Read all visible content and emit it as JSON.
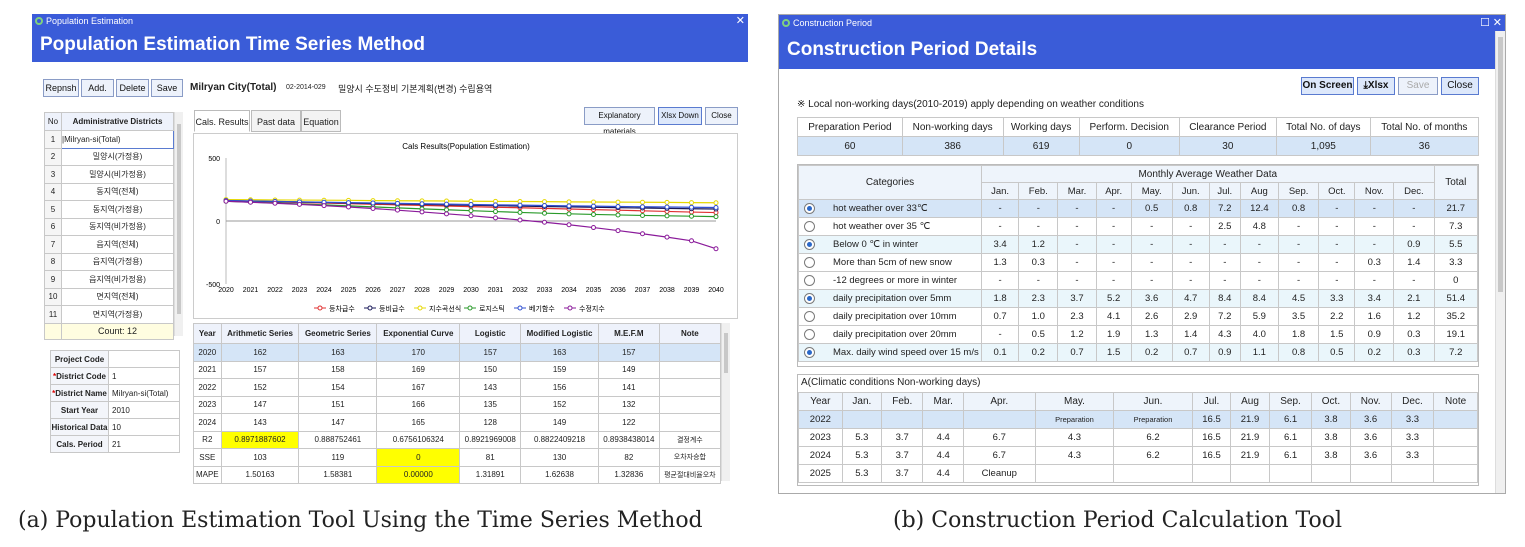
{
  "left": {
    "window_title": "Population Estimation",
    "banner_title": "Population Estimation Time Series Method",
    "toolbar": {
      "refresh": "Repnsh",
      "add": "Add.",
      "delete": "Delete",
      "save": "Save"
    },
    "city": "Milryan City(Total)",
    "code": "02-2014-029",
    "project_name": "밀양시 수도정비 기본계획(변경) 수립용역",
    "right_buttons": {
      "explain": "Explanatory materials",
      "xlsx": "Xlsx Down",
      "close": "Close"
    },
    "district_table": {
      "headers": [
        "No",
        "Administrative Districts"
      ],
      "rows": [
        [
          "1",
          "|Milryan-si(Total)"
        ],
        [
          "2",
          "밀양시(가정용)"
        ],
        [
          "3",
          "밀양시(비가정용)"
        ],
        [
          "4",
          "동지역(전체)"
        ],
        [
          "5",
          "동지역(가정용)"
        ],
        [
          "6",
          "동지역(비가정용)"
        ],
        [
          "7",
          "읍지역(전체)"
        ],
        [
          "8",
          "읍지역(가정용)"
        ],
        [
          "9",
          "읍지역(비가정용)"
        ],
        [
          "10",
          "면지역(전체)"
        ],
        [
          "11",
          "면지역(가정용)"
        ]
      ],
      "count": "Count: 12"
    },
    "info": [
      {
        "label": "Project Code",
        "value": "",
        "req": false
      },
      {
        "label": "District Code",
        "value": "1",
        "req": true
      },
      {
        "label": "District Name",
        "value": "Milryan-si(Total)",
        "req": true
      },
      {
        "label": "Start Year",
        "value": "2010",
        "req": false
      },
      {
        "label": "Historical Data",
        "value": "10",
        "req": false
      },
      {
        "label": "Cals. Period",
        "value": "21",
        "req": false
      }
    ],
    "tabs": [
      "Cals. Results",
      "Past data",
      "Equation"
    ],
    "result_table": {
      "headers": [
        "Year",
        "Arithmetic Series",
        "Geometric Series",
        "Exponential Curve",
        "Logistic",
        "Modified Logistic",
        "M.E.F.M",
        "Note"
      ],
      "rows": [
        [
          "2020",
          "162",
          "163",
          "170",
          "157",
          "163",
          "157",
          ""
        ],
        [
          "2021",
          "157",
          "158",
          "169",
          "150",
          "159",
          "149",
          ""
        ],
        [
          "2022",
          "152",
          "154",
          "167",
          "143",
          "156",
          "141",
          ""
        ],
        [
          "2023",
          "147",
          "151",
          "166",
          "135",
          "152",
          "132",
          ""
        ],
        [
          "2024",
          "143",
          "147",
          "165",
          "128",
          "149",
          "122",
          ""
        ]
      ],
      "stats": [
        [
          "R2",
          "0.8971887602",
          "0.888752461",
          "0.6756106324",
          "0.8921969008",
          "0.8822409218",
          "0.8938438014",
          "결정계수"
        ],
        [
          "SSE",
          "103",
          "119",
          "0",
          "81",
          "130",
          "82",
          "오차자승합"
        ],
        [
          "MAPE",
          "1.50163",
          "1.58381",
          "0.00000",
          "1.31891",
          "1.62638",
          "1.32836",
          "평균절대비율오차"
        ]
      ]
    }
  },
  "chart_data": {
    "type": "line",
    "title": "Cals Results(Population Estimation)",
    "x": [
      2020,
      2021,
      2022,
      2023,
      2024,
      2025,
      2026,
      2027,
      2028,
      2029,
      2030,
      2031,
      2032,
      2033,
      2034,
      2035,
      2036,
      2037,
      2038,
      2039,
      2040
    ],
    "ylim": [
      -500,
      500
    ],
    "yticks": [
      500,
      0,
      -500
    ],
    "series": [
      {
        "name": "등차급수",
        "color": "#e03030",
        "values": [
          162,
          157,
          152,
          147,
          143,
          138,
          133,
          128,
          124,
          119,
          114,
          109,
          105,
          100,
          95,
          90,
          86,
          81,
          76,
          71,
          67
        ]
      },
      {
        "name": "등비급수",
        "color": "#1a1a5a",
        "values": [
          163,
          158,
          154,
          151,
          147,
          143,
          139,
          136,
          132,
          128,
          125,
          122,
          118,
          115,
          112,
          109,
          106,
          103,
          100,
          97,
          95
        ]
      },
      {
        "name": "지수곡선식",
        "color": "#e6d800",
        "values": [
          170,
          169,
          167,
          166,
          165,
          164,
          162,
          161,
          160,
          159,
          157,
          156,
          155,
          154,
          152,
          151,
          150,
          149,
          148,
          146,
          145
        ]
      },
      {
        "name": "로지스틱",
        "color": "#2a9a2a",
        "values": [
          157,
          150,
          143,
          135,
          128,
          120,
          112,
          104,
          96,
          89,
          82,
          75,
          68,
          62,
          57,
          52,
          48,
          44,
          41,
          38,
          35
        ]
      },
      {
        "name": "베기함수",
        "color": "#3050d0",
        "values": [
          163,
          159,
          156,
          152,
          149,
          146,
          143,
          140,
          137,
          134,
          131,
          128,
          126,
          123,
          120,
          118,
          115,
          113,
          111,
          109,
          107
        ]
      },
      {
        "name": "수정지수",
        "color": "#8a1a9a",
        "values": [
          157,
          149,
          141,
          132,
          122,
          111,
          99,
          86,
          72,
          57,
          42,
          25,
          8,
          -10,
          -30,
          -52,
          -76,
          -101,
          -128,
          -157,
          -220
        ]
      }
    ]
  },
  "right": {
    "window_title": "Construction Period",
    "banner_title": "Construction Period Details",
    "buttons": {
      "onscreen": "On Screen",
      "xlsx": "⤓Xlsx",
      "save": "Save",
      "close": "Close"
    },
    "note": "※ Local non-working days(2010-2019) apply depending on weather conditions",
    "summary": {
      "headers": [
        "Preparation Period",
        "Non-working days",
        "Working days",
        "Perform. Decision",
        "Clearance Period",
        "Total No. of days",
        "Total No. of months"
      ],
      "values": [
        "60",
        "386",
        "619",
        "0",
        "30",
        "1,095",
        "36"
      ]
    },
    "weather": {
      "categories_header": "Categories",
      "monthly_header": "Monthly Average Weather Data",
      "total_header": "Total",
      "months": [
        "Jan.",
        "Feb.",
        "Mar.",
        "Apr.",
        "May.",
        "Jun.",
        "Jul.",
        "Aug",
        "Sep.",
        "Oct.",
        "Nov.",
        "Dec."
      ],
      "rows": [
        {
          "on": true,
          "label": "hot weather over 33℃",
          "vals": [
            "-",
            "-",
            "-",
            "-",
            "0.5",
            "0.8",
            "7.2",
            "12.4",
            "0.8",
            "-",
            "-",
            "-"
          ],
          "total": "21.7"
        },
        {
          "on": false,
          "label": "hot weather over 35 ℃",
          "vals": [
            "-",
            "-",
            "-",
            "-",
            "-",
            "-",
            "2.5",
            "4.8",
            "-",
            "-",
            "-",
            "-"
          ],
          "total": "7.3"
        },
        {
          "on": true,
          "label": "Below 0 ℃ in winter",
          "vals": [
            "3.4",
            "1.2",
            "-",
            "-",
            "-",
            "-",
            "-",
            "-",
            "-",
            "-",
            "-",
            "0.9"
          ],
          "total": "5.5"
        },
        {
          "on": false,
          "label": "More than 5cm of new snow",
          "vals": [
            "1.3",
            "0.3",
            "-",
            "-",
            "-",
            "-",
            "-",
            "-",
            "-",
            "-",
            "0.3",
            "1.4"
          ],
          "total": "3.3"
        },
        {
          "on": false,
          "label": "-12 degrees or more in winter",
          "vals": [
            "-",
            "-",
            "-",
            "-",
            "-",
            "-",
            "-",
            "-",
            "-",
            "-",
            "-",
            "-"
          ],
          "total": "0"
        },
        {
          "on": true,
          "label": "daily precipitation over 5mm",
          "vals": [
            "1.8",
            "2.3",
            "3.7",
            "5.2",
            "3.6",
            "4.7",
            "8.4",
            "8.4",
            "4.5",
            "3.3",
            "3.4",
            "2.1"
          ],
          "total": "51.4"
        },
        {
          "on": false,
          "label": "daily precipitation over 10mm",
          "vals": [
            "0.7",
            "1.0",
            "2.3",
            "4.1",
            "2.6",
            "2.9",
            "7.2",
            "5.9",
            "3.5",
            "2.2",
            "1.6",
            "1.2"
          ],
          "total": "35.2"
        },
        {
          "on": false,
          "label": "daily precipitation over 20mm",
          "vals": [
            "-",
            "0.5",
            "1.2",
            "1.9",
            "1.3",
            "1.4",
            "4.3",
            "4.0",
            "1.8",
            "1.5",
            "0.9",
            "0.3"
          ],
          "total": "19.1"
        },
        {
          "on": true,
          "label": "Max. daily wind speed over 15 m/s",
          "vals": [
            "0.1",
            "0.2",
            "0.7",
            "1.5",
            "0.2",
            "0.7",
            "0.9",
            "1.1",
            "0.8",
            "0.5",
            "0.2",
            "0.3"
          ],
          "total": "7.2"
        }
      ]
    },
    "nonwork": {
      "title": "A(Climatic conditions Non-working days)",
      "headers": [
        "Year",
        "Jan.",
        "Feb.",
        "Mar.",
        "Apr.",
        "May.",
        "Jun.",
        "Jul.",
        "Aug",
        "Sep.",
        "Oct.",
        "Nov.",
        "Dec.",
        "Note"
      ],
      "rows": [
        [
          "2022",
          "",
          "",
          "",
          "",
          "Preparation",
          "Preparation",
          "16.5",
          "21.9",
          "6.1",
          "3.8",
          "3.6",
          "3.3",
          ""
        ],
        [
          "2023",
          "5.3",
          "3.7",
          "4.4",
          "6.7",
          "4.3",
          "6.2",
          "16.5",
          "21.9",
          "6.1",
          "3.8",
          "3.6",
          "3.3",
          ""
        ],
        [
          "2024",
          "5.3",
          "3.7",
          "4.4",
          "6.7",
          "4.3",
          "6.2",
          "16.5",
          "21.9",
          "6.1",
          "3.8",
          "3.6",
          "3.3",
          ""
        ],
        [
          "2025",
          "5.3",
          "3.7",
          "4.4",
          "Cleanup",
          "",
          "",
          "",
          "",
          "",
          "",
          "",
          "",
          ""
        ]
      ]
    }
  },
  "captions": {
    "a": "(a) Population Estimation Tool Using the Time Series Method",
    "b": "(b) Construction Period Calculation Tool"
  }
}
